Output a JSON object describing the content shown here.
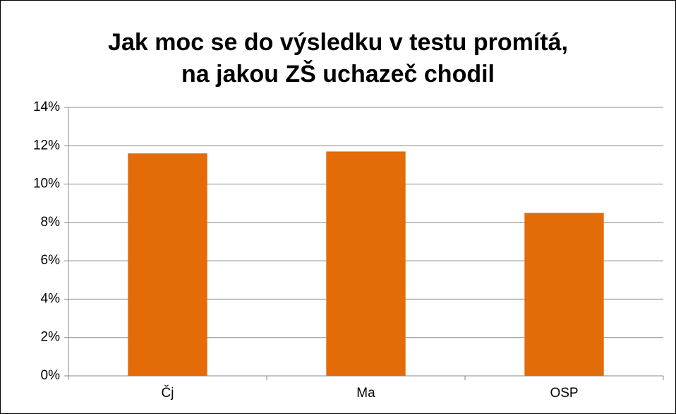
{
  "chart_data": {
    "type": "bar",
    "title": [
      "Jak moc se do výsledku v testu promítá,",
      "na jakou ZŠ uchazeč chodil"
    ],
    "categories": [
      "Čj",
      "Ma",
      "OSP"
    ],
    "values": [
      11.6,
      11.7,
      8.5
    ],
    "color": "#e36c09",
    "ylim": [
      0,
      14
    ],
    "yticks": [
      {
        "value": 0,
        "label": "0%"
      },
      {
        "value": 2,
        "label": "2%"
      },
      {
        "value": 4,
        "label": "4%"
      },
      {
        "value": 6,
        "label": "6%"
      },
      {
        "value": 8,
        "label": "8%"
      },
      {
        "value": 10,
        "label": "10%"
      },
      {
        "value": 12,
        "label": "12%"
      },
      {
        "value": 14,
        "label": "14%"
      }
    ],
    "grid": true
  }
}
